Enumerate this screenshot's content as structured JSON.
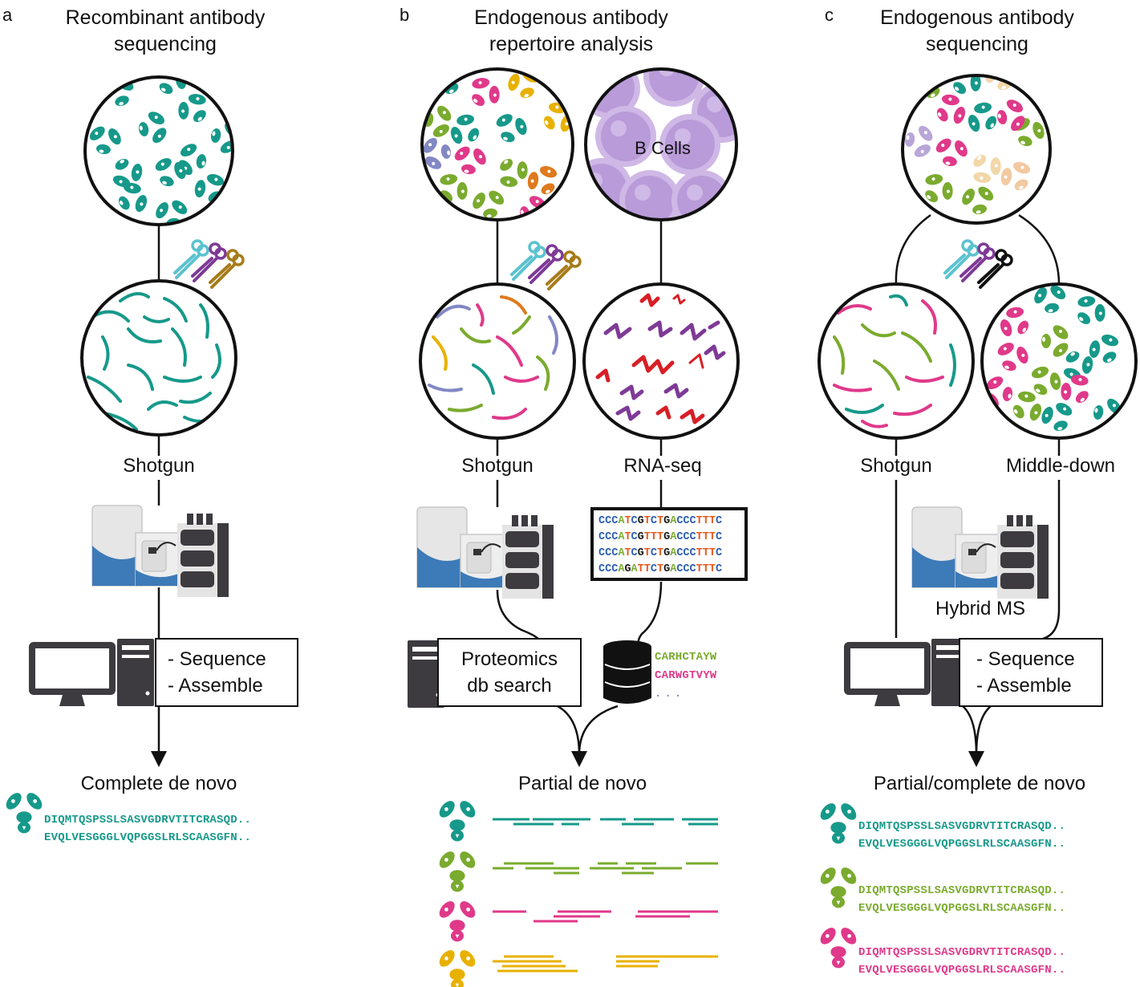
{
  "colors": {
    "teal": "#16998a",
    "green": "#7aab2e",
    "pink": "#e0398a",
    "yellow": "#e8b100",
    "purple": "#7e3a96",
    "blue_violet": "#8288c4",
    "orange": "#de7a1c",
    "red": "#d81f26",
    "lavender": "#b9a6d8",
    "peach": "#f2d7a8",
    "dark": "#3d3a40",
    "instrument_blue": "#3d7ab8"
  },
  "panel_a": {
    "letter": "a",
    "title_line1": "Recombinant antibody",
    "title_line2": "sequencing",
    "method": "Shotgun",
    "box_line1": "- Sequence",
    "box_line2": "- Assemble",
    "result": "Complete de novo",
    "seq1": "DIQMTQSPSSLSASVGDRVTITCRASQD..",
    "seq2": "EVQLVESGGGLVQPGGSLRLSCAASGFN.."
  },
  "panel_b": {
    "letter": "b",
    "title_line1": "Endogenous antibody",
    "title_line2": "repertoire analysis",
    "cells_label": "B Cells",
    "method_left": "Shotgun",
    "method_right": "RNA-seq",
    "box_line1": "Proteomics",
    "box_line2": "db search",
    "rna_rows": [
      "CCCATCGTCTGACCCTTTC",
      "CCCATCGTTTGACCCTTTC",
      "CCCATCGTCTGACCCTTTC",
      "CCCAGATTCTGACCCTTTC"
    ],
    "db_seq1": "CARHCTAYW",
    "db_seq2": "CARWGTVYW",
    "db_more": "...",
    "result": "Partial de novo"
  },
  "panel_c": {
    "letter": "c",
    "title_line1": "Endogenous antibody",
    "title_line2": "sequencing",
    "method_left": "Shotgun",
    "method_right": "Middle-down",
    "instrument_label": "Hybrid MS",
    "box_line1": "- Sequence",
    "box_line2": "- Assemble",
    "result": "Partial/complete de novo",
    "seq1": "DIQMTQSPSSLSASVGDRVTITCRASQD..",
    "seq2": "EVQLVESGGGLVQPGGSLRLSCAASGFN.."
  }
}
